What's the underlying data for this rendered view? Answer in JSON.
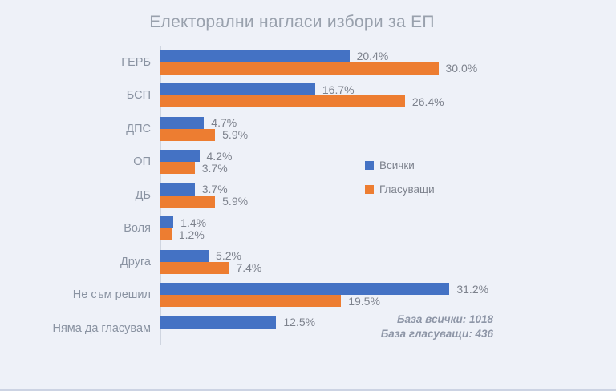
{
  "chart_data": {
    "type": "bar",
    "orientation": "horizontal",
    "title": "Електорални нагласи избори за ЕП",
    "categories": [
      "ГЕРБ",
      "БСП",
      "ДПС",
      "ОП",
      "ДБ",
      "Воля",
      "Друга",
      "Не съм решил",
      "Няма да гласувам"
    ],
    "series": [
      {
        "name": "Всички",
        "color": "#4472c4",
        "values": [
          20.4,
          16.7,
          4.7,
          4.2,
          3.7,
          1.4,
          5.2,
          31.2,
          12.5
        ]
      },
      {
        "name": "Гласуващи",
        "color": "#ed7d31",
        "values": [
          30.0,
          26.4,
          5.9,
          3.7,
          5.9,
          1.2,
          7.4,
          19.5,
          null
        ]
      }
    ],
    "value_suffix": "%",
    "value_decimals": 1,
    "xlim": [
      0,
      49
    ],
    "grid": false,
    "legend_position": "middle-right",
    "annotations": [
      "База всички: 1018",
      "База гласуващи: 436"
    ]
  }
}
